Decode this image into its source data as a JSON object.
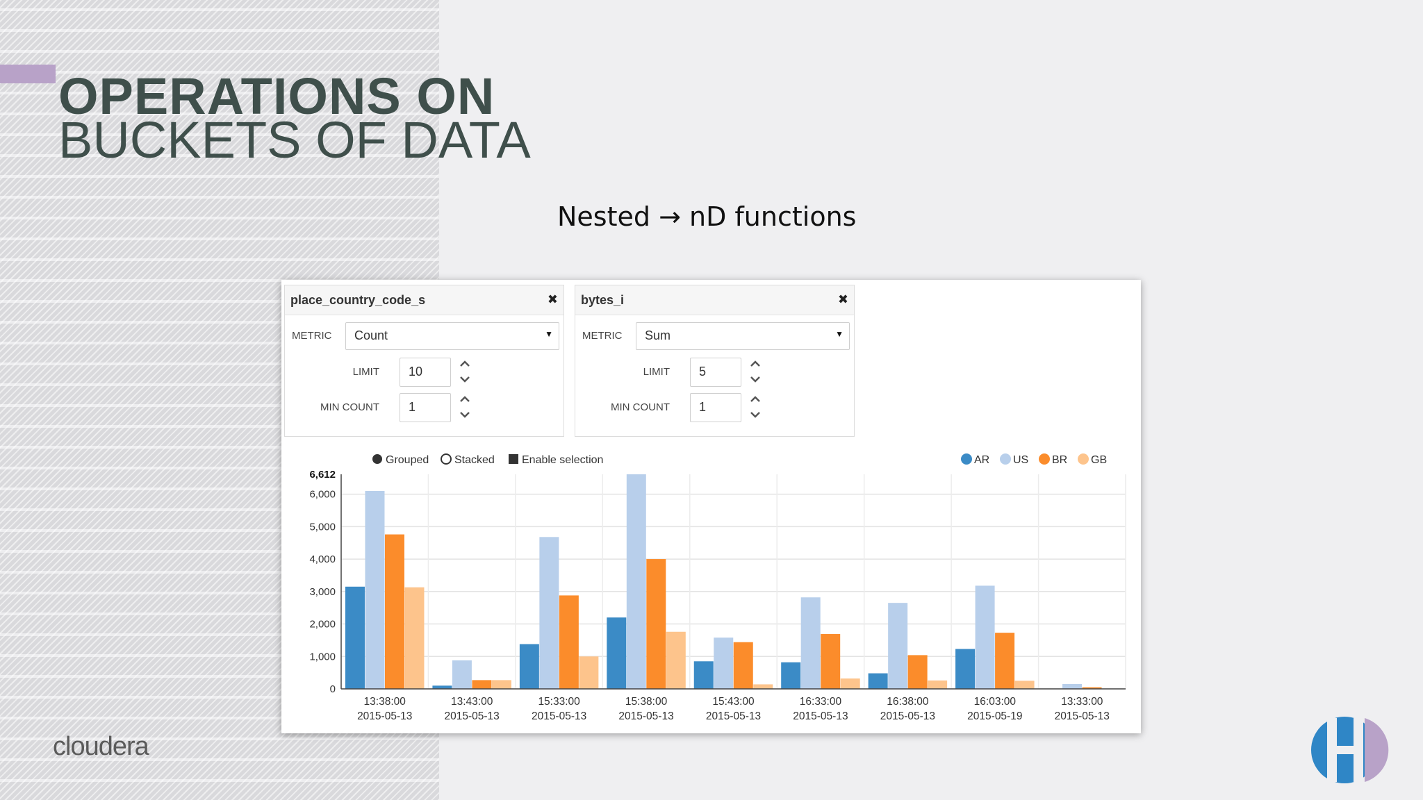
{
  "slide": {
    "title_line1": "OPERATIONS ON",
    "title_line2": "BUCKETS OF DATA",
    "subtitle": "Nested → nD functions",
    "brand_logo": "cloudera",
    "accent_color": "#b8a2c8",
    "title_color": "#3f4f4b"
  },
  "facets": [
    {
      "title": "place_country_code_s",
      "close_icon": "✖",
      "metric_label": "METRIC",
      "metric_value": "Count",
      "limit_label": "LIMIT",
      "limit_value": "10",
      "min_count_label": "MIN COUNT",
      "min_count_value": "1"
    },
    {
      "title": "bytes_i",
      "close_icon": "✖",
      "metric_label": "METRIC",
      "metric_value": "Sum",
      "limit_label": "LIMIT",
      "limit_value": "5",
      "min_count_label": "MIN COUNT",
      "min_count_value": "1"
    }
  ],
  "chart_controls": {
    "grouped": "Grouped",
    "stacked": "Stacked",
    "enable_selection": "Enable selection",
    "grouped_selected": true
  },
  "chart_data": {
    "type": "bar",
    "grouped": true,
    "categories": [
      [
        "13:38:00",
        "2015-05-13"
      ],
      [
        "13:43:00",
        "2015-05-13"
      ],
      [
        "15:33:00",
        "2015-05-13"
      ],
      [
        "15:38:00",
        "2015-05-13"
      ],
      [
        "15:43:00",
        "2015-05-13"
      ],
      [
        "16:33:00",
        "2015-05-13"
      ],
      [
        "16:38:00",
        "2015-05-13"
      ],
      [
        "16:03:00",
        "2015-05-19"
      ],
      [
        "13:33:00",
        "2015-05-13"
      ]
    ],
    "series": [
      {
        "name": "AR",
        "color": "#3b8bc6",
        "values": [
          3150,
          100,
          1380,
          2200,
          850,
          820,
          480,
          1230,
          0
        ]
      },
      {
        "name": "US",
        "color": "#b8cfeb",
        "values": [
          6100,
          880,
          4680,
          6612,
          1580,
          2820,
          2650,
          3180,
          150
        ]
      },
      {
        "name": "BR",
        "color": "#fb8c2b",
        "values": [
          4760,
          270,
          2880,
          4000,
          1440,
          1690,
          1040,
          1730,
          50
        ]
      },
      {
        "name": "GB",
        "color": "#fdc48c",
        "values": [
          3130,
          270,
          1000,
          1760,
          140,
          320,
          260,
          250,
          0
        ]
      }
    ],
    "yticks": [
      "0",
      "1,000",
      "2,000",
      "3,000",
      "4,000",
      "5,000",
      "6,000"
    ],
    "ymax_label": "6,612",
    "ylim": [
      0,
      6612
    ],
    "grid": true,
    "legend_position": "top-right"
  }
}
